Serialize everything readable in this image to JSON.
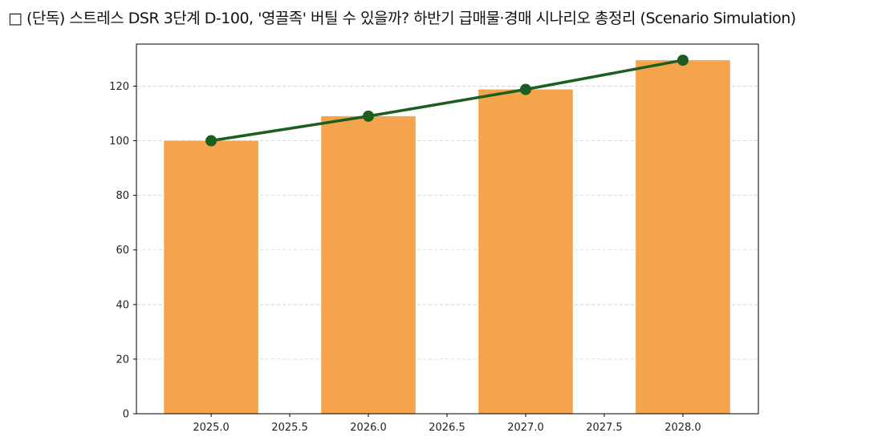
{
  "chart_data": {
    "type": "bar",
    "title": "□ (단독) 스트레스 DSR 3단계 D-100, '영끌족' 버틸 수 있을까? 하반기 급매물·경매 시나리오 총정리 (Scenario Simulation)",
    "xlabel": "",
    "ylabel": "",
    "x": [
      2025,
      2026,
      2027,
      2028
    ],
    "bar_values": [
      100,
      109,
      118.8,
      129.5
    ],
    "line_values": [
      100,
      109,
      118.8,
      129.5
    ],
    "bar_color": "#F5A34C",
    "line_color": "#1B5E20",
    "xlim": [
      2024.525,
      2028.48
    ],
    "ylim": [
      0,
      135.4
    ],
    "xticks": [
      "2025.0",
      "2025.5",
      "2026.0",
      "2026.5",
      "2027.0",
      "2027.5",
      "2028.0"
    ],
    "yticks": [
      "0",
      "20",
      "40",
      "60",
      "80",
      "100",
      "120"
    ],
    "grid": "y-dashed",
    "legend": "none"
  }
}
